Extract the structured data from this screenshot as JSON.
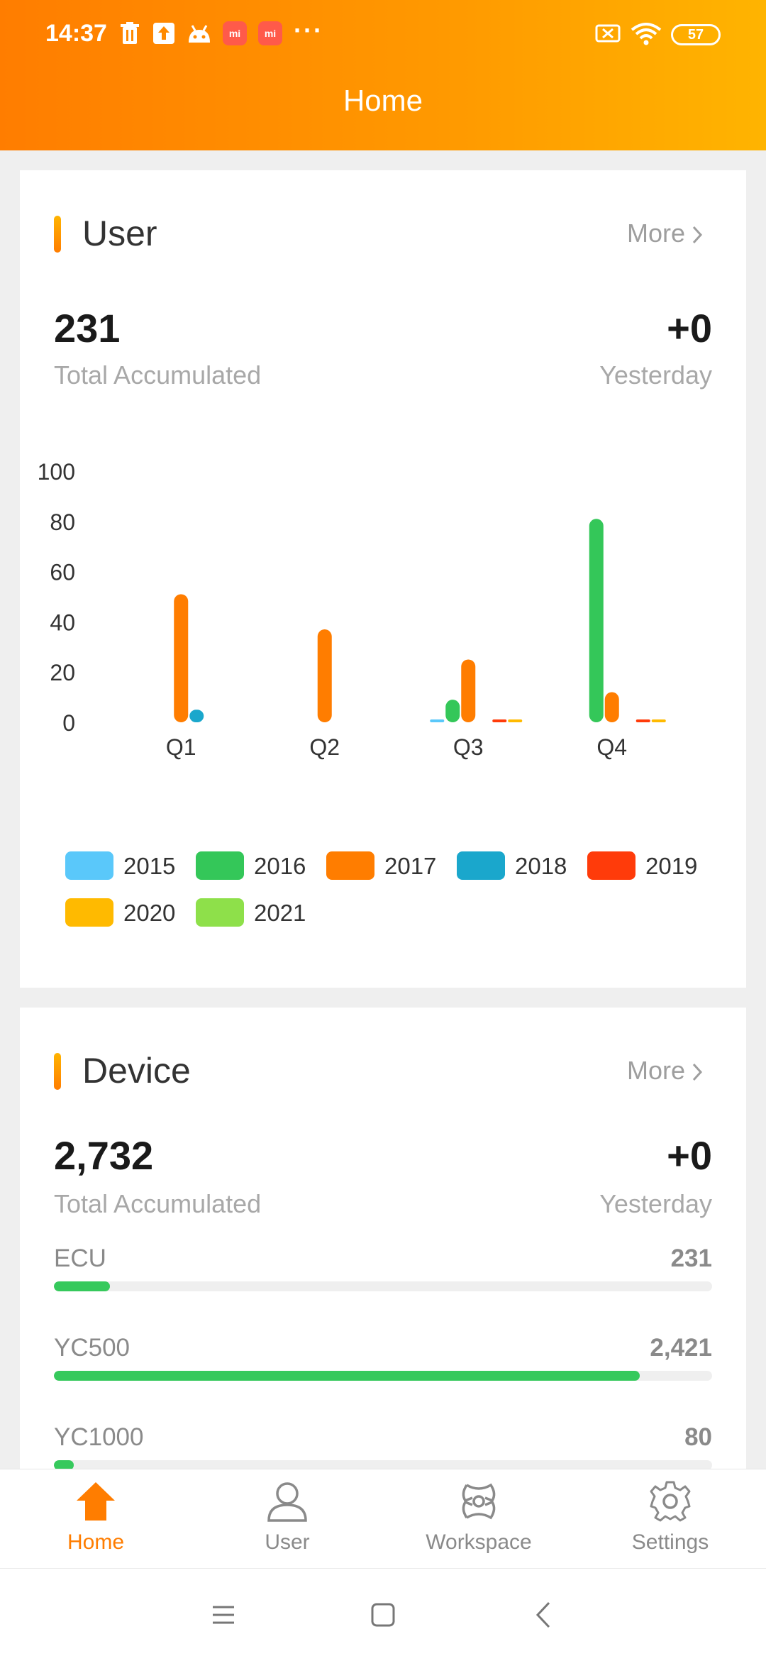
{
  "status_bar": {
    "time": "14:37",
    "icons": [
      "trash-icon",
      "upload-icon",
      "android-icon",
      "mi-icon",
      "mi-icon",
      "more-dots"
    ],
    "mi_label": "mi",
    "dots": "···",
    "battery": "57"
  },
  "header": {
    "title": "Home"
  },
  "user_card": {
    "title": "User",
    "more": "More",
    "total": "231",
    "total_label": "Total Accumulated",
    "yesterday": "+0",
    "yesterday_label": "Yesterday"
  },
  "chart_data": {
    "type": "bar",
    "categories": [
      "Q1",
      "Q2",
      "Q3",
      "Q4"
    ],
    "ylim": [
      0,
      100
    ],
    "yticks": [
      "0",
      "20",
      "40",
      "60",
      "80",
      "100"
    ],
    "series": [
      {
        "name": "2015",
        "color": "#5ac8fa",
        "values": [
          0,
          0,
          0.5,
          0
        ]
      },
      {
        "name": "2016",
        "color": "#34c759",
        "values": [
          0,
          0,
          9,
          81
        ]
      },
      {
        "name": "2017",
        "color": "#ff7d00",
        "values": [
          51,
          37,
          25,
          12
        ]
      },
      {
        "name": "2018",
        "color": "#1aa7cc",
        "values": [
          5,
          0,
          0,
          0
        ]
      },
      {
        "name": "2019",
        "color": "#ff3b0a",
        "values": [
          0,
          0,
          1,
          1
        ]
      },
      {
        "name": "2020",
        "color": "#ffba00",
        "values": [
          0,
          0,
          1,
          1
        ]
      },
      {
        "name": "2021",
        "color": "#8ee04a",
        "values": [
          0,
          0,
          0,
          0
        ]
      }
    ]
  },
  "device_card": {
    "title": "Device",
    "more": "More",
    "total": "2,732",
    "total_label": "Total Accumulated",
    "yesterday": "+0",
    "yesterday_label": "Yesterday",
    "items": [
      {
        "name": "ECU",
        "count": "231",
        "fraction": 0.085
      },
      {
        "name": "YC500",
        "count": "2,421",
        "fraction": 0.89
      },
      {
        "name": "YC1000",
        "count": "80",
        "fraction": 0.03
      }
    ]
  },
  "bottom_nav": {
    "items": [
      {
        "label": "Home",
        "icon": "home-icon",
        "active": true
      },
      {
        "label": "User",
        "icon": "user-icon",
        "active": false
      },
      {
        "label": "Workspace",
        "icon": "workspace-icon",
        "active": false
      },
      {
        "label": "Settings",
        "icon": "gear-icon",
        "active": false
      }
    ],
    "active_color": "#ff7d00"
  },
  "system_nav": [
    "menu-icon",
    "home-square-icon",
    "back-icon"
  ]
}
